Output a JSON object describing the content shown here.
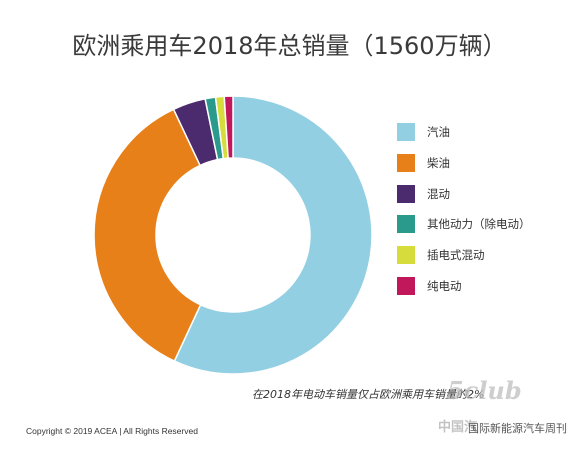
{
  "page": {
    "title": "欧洲乘用车2018年总销量（1560万辆）",
    "note": "在2018年电动车销量仅占欧洲乘用车销量的2%",
    "copyright": "Copyright © 2019 ACEA | All Rights Reserved",
    "watermark": {
      "logo": "5club",
      "site": "中国汽",
      "tag": "国际新能源汽车周刊"
    }
  },
  "chart_data": {
    "type": "pie",
    "style": "donut",
    "title": "欧洲乘用车2018年总销量（1560万辆）",
    "unit": "%",
    "legend_position": "right",
    "series": [
      {
        "name": "",
        "categories": [
          "汽油",
          "柴油",
          "混动",
          "其他动力（除电动）",
          "插电式混动",
          "纯电动"
        ],
        "values": [
          56.7,
          35.9,
          3.8,
          1.2,
          1.0,
          1.0
        ],
        "colors": [
          "#93cfe3",
          "#e8801a",
          "#4b2a6e",
          "#2a9a8c",
          "#d6dc3c",
          "#c0185a"
        ]
      }
    ]
  }
}
